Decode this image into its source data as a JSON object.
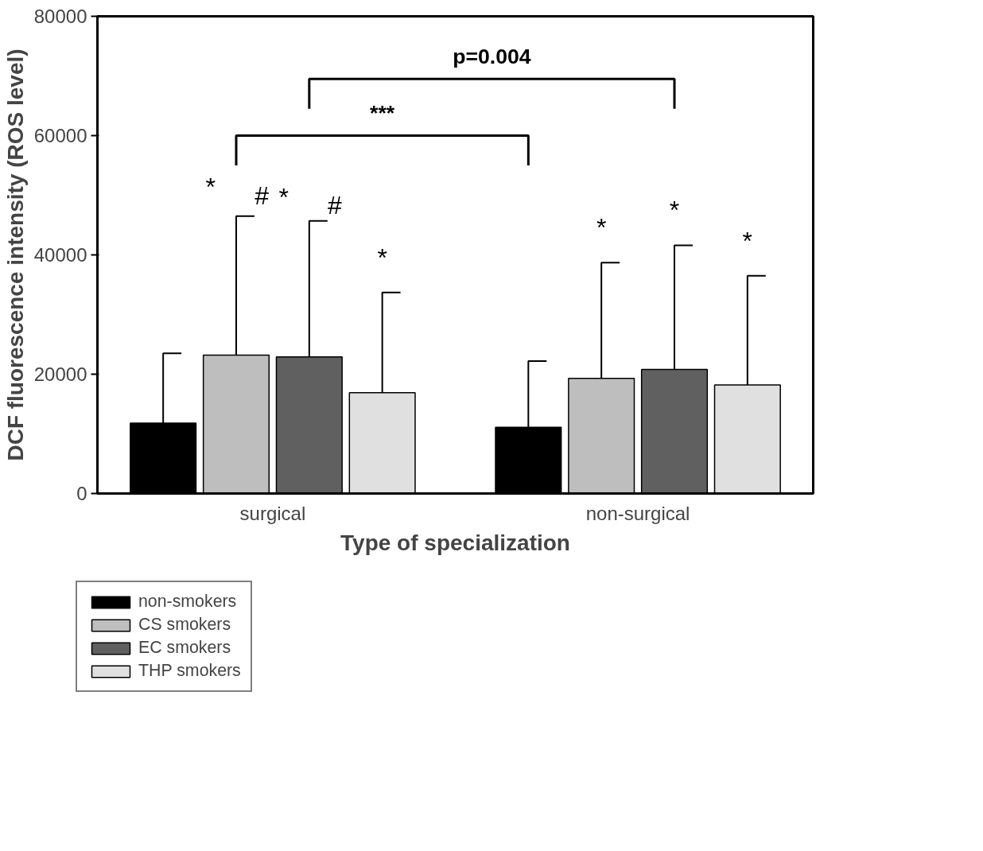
{
  "chart_data": {
    "type": "bar",
    "xlabel": "Type of specialization",
    "ylabel": "DCF fluorescence intensity (ROS level)",
    "categories": [
      "surgical",
      "non-surgical"
    ],
    "series": [
      {
        "name": "non-smokers",
        "color": "#000000",
        "values": [
          11800,
          11100
        ],
        "errors": [
          [
            11800,
            23500
          ],
          [
            11100,
            22200
          ]
        ]
      },
      {
        "name": "CS smokers",
        "color": "#bebebe",
        "values": [
          23200,
          19300
        ],
        "errors": [
          [
            23200,
            46500
          ],
          [
            19300,
            38700
          ]
        ]
      },
      {
        "name": "EC smokers",
        "color": "#606060",
        "values": [
          22900,
          20800
        ],
        "errors": [
          [
            22900,
            45700
          ],
          [
            20800,
            41600
          ]
        ]
      },
      {
        "name": "THP smokers",
        "color": "#e0e0e0",
        "values": [
          16900,
          18200
        ],
        "errors": [
          [
            16900,
            33700
          ],
          [
            18200,
            36500
          ]
        ]
      }
    ],
    "ylim": [
      0,
      80000
    ],
    "yticks": [
      0,
      20000,
      40000,
      60000,
      80000
    ],
    "grid": false,
    "legend": "bottom left",
    "annotations": [
      "p=0.004",
      "***",
      "*",
      "#",
      "*",
      "#",
      "*",
      "*",
      "*",
      "*"
    ]
  }
}
